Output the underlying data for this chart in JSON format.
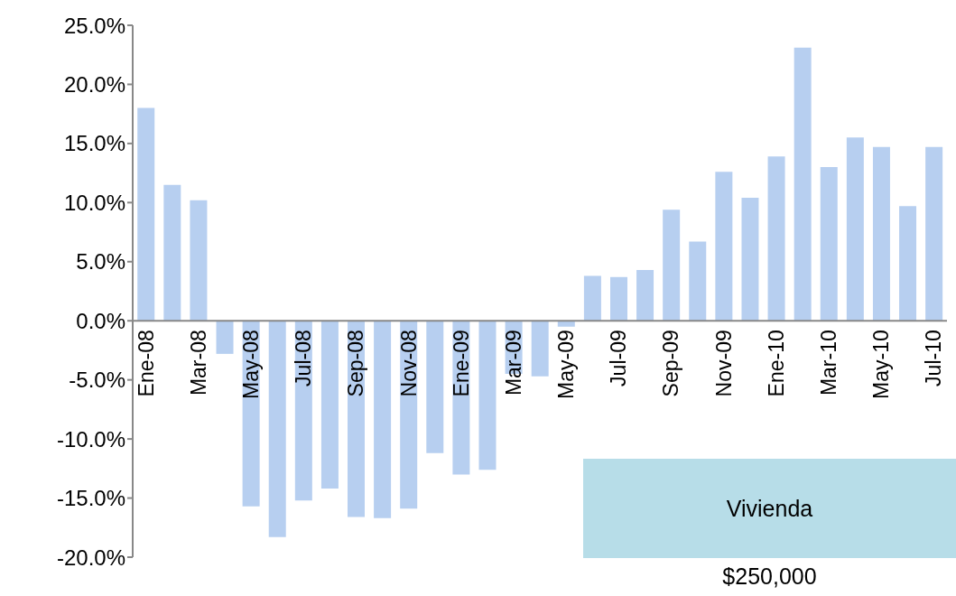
{
  "chart_data": {
    "type": "bar",
    "categories": [
      "Ene-08",
      null,
      "Mar-08",
      null,
      "May-08",
      null,
      "Jul-08",
      null,
      "Sep-08",
      null,
      "Nov-08",
      null,
      "Ene-09",
      null,
      "Mar-09",
      null,
      "May-09",
      null,
      "Jul-09",
      null,
      "Sep-09",
      null,
      "Nov-09",
      null,
      "Ene-10",
      null,
      "Mar-10",
      null,
      "May-10",
      null,
      "Jul-10"
    ],
    "values": [
      18.0,
      11.5,
      10.2,
      -2.8,
      -15.7,
      -18.3,
      -15.2,
      -14.2,
      -16.6,
      -16.7,
      -15.9,
      -11.2,
      -13.0,
      -12.6,
      -4.5,
      -4.7,
      -0.5,
      3.8,
      3.7,
      4.3,
      9.4,
      6.7,
      12.6,
      10.4,
      13.9,
      23.1,
      13.0,
      15.5,
      14.7,
      9.7,
      14.7
    ],
    "color": "#b7cff0",
    "ylim": [
      -20,
      25
    ],
    "yticks": [
      {
        "value": -20,
        "label": "-20.0%"
      },
      {
        "value": -15,
        "label": "-15.0%"
      },
      {
        "value": -10,
        "label": "-10.0%"
      },
      {
        "value": -5,
        "label": "-5.0%"
      },
      {
        "value": 0,
        "label": "0.0%"
      },
      {
        "value": 5,
        "label": "5.0%"
      },
      {
        "value": 10,
        "label": "10.0%"
      },
      {
        "value": 15,
        "label": "15.0%"
      },
      {
        "value": 20,
        "label": "20.0%"
      },
      {
        "value": 25,
        "label": "25.0%"
      }
    ],
    "grid": false,
    "annotations": [
      "Vivienda",
      "$250,000"
    ]
  }
}
